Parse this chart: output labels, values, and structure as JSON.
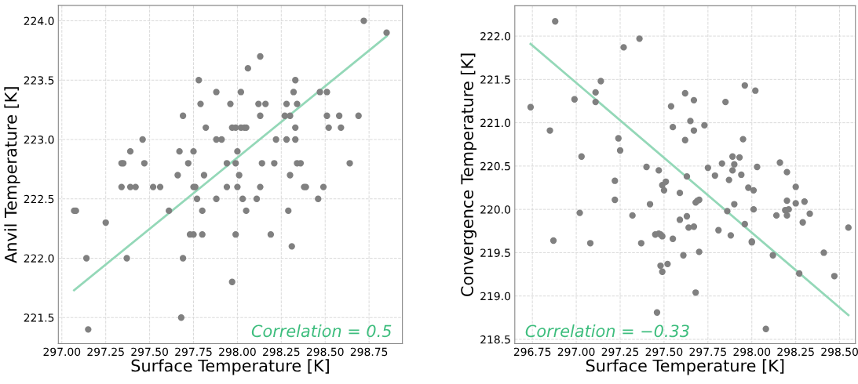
{
  "chart_data": [
    {
      "type": "scatter",
      "xlabel": "Surface Temperature [K]",
      "ylabel": "Anvil Temperature [K]",
      "xlim": [
        296.98,
        298.94
      ],
      "ylim": [
        221.28,
        224.13
      ],
      "xticks": [
        {
          "value": 297.0,
          "label": "297.00"
        },
        {
          "value": 297.25,
          "label": "297.25"
        },
        {
          "value": 297.5,
          "label": "297.50"
        },
        {
          "value": 297.75,
          "label": "297.75"
        },
        {
          "value": 298.0,
          "label": "298.00"
        },
        {
          "value": 298.25,
          "label": "298.25"
        },
        {
          "value": 298.5,
          "label": "298.50"
        },
        {
          "value": 298.75,
          "label": "298.75"
        }
      ],
      "yticks": [
        221.5,
        {
          "value": 222.0,
          "label": "222.0"
        },
        222.5,
        {
          "value": 223.0,
          "label": "223.0"
        },
        223.5,
        {
          "value": 224.0,
          "label": "224.0"
        }
      ],
      "grid": true,
      "marker": "circle",
      "annotations": [
        "Correlation = 0.5"
      ],
      "series": [
        {
          "color": "#808080",
          "x": [
            298.72,
            298.85,
            298.13,
            298.06,
            297.78,
            298.33,
            297.88,
            298.02,
            298.32,
            298.47,
            298.51,
            297.79,
            297.96,
            298.12,
            298.16,
            298.28,
            298.34,
            297.69,
            298.13,
            298.27,
            298.3,
            298.51,
            298.58,
            298.69,
            297.82,
            297.97,
            297.99,
            298.02,
            298.04,
            298.05,
            298.33,
            298.52,
            298.59,
            297.46,
            297.88,
            297.91,
            298.22,
            298.28,
            298.33,
            297.39,
            297.67,
            297.75,
            298.0,
            297.34,
            297.35,
            297.47,
            297.72,
            297.94,
            297.99,
            298.14,
            298.21,
            298.34,
            298.36,
            298.64,
            297.66,
            297.81,
            298.01,
            298.3,
            297.34,
            297.39,
            297.42,
            297.52,
            297.56,
            297.75,
            297.76,
            297.94,
            298.0,
            298.13,
            298.38,
            298.39,
            298.49,
            297.77,
            297.88,
            298.03,
            298.11,
            298.46,
            297.07,
            297.08,
            297.61,
            297.8,
            298.05,
            298.29,
            297.25,
            297.73,
            297.75,
            297.8,
            297.99,
            298.19,
            298.31,
            297.14,
            297.37,
            297.69,
            297.97,
            297.68,
            297.15
          ],
          "values": [
            224.0,
            223.9,
            223.7,
            223.6,
            223.5,
            223.5,
            223.4,
            223.4,
            223.4,
            223.4,
            223.4,
            223.3,
            223.3,
            223.3,
            223.3,
            223.3,
            223.3,
            223.2,
            223.2,
            223.2,
            223.2,
            223.2,
            223.2,
            223.2,
            223.1,
            223.1,
            223.1,
            223.1,
            223.1,
            223.1,
            223.1,
            223.1,
            223.1,
            223.0,
            223.0,
            223.0,
            223.0,
            223.0,
            223.0,
            222.9,
            222.9,
            222.9,
            222.9,
            222.8,
            222.8,
            222.8,
            222.8,
            222.8,
            222.8,
            222.8,
            222.8,
            222.8,
            222.8,
            222.8,
            222.7,
            222.7,
            222.7,
            222.7,
            222.6,
            222.6,
            222.6,
            222.6,
            222.6,
            222.6,
            222.6,
            222.6,
            222.6,
            222.6,
            222.6,
            222.6,
            222.6,
            222.5,
            222.5,
            222.5,
            222.5,
            222.5,
            222.4,
            222.4,
            222.4,
            222.4,
            222.4,
            222.4,
            222.3,
            222.2,
            222.2,
            222.2,
            222.2,
            222.2,
            222.1,
            222.0,
            222.0,
            222.0,
            221.8,
            221.5,
            221.4
          ]
        },
        {
          "type": "line",
          "color": "#94d8b8",
          "marker": "none",
          "line_style": "solid",
          "x": [
            297.07,
            298.85
          ],
          "values": [
            221.73,
            223.87
          ]
        }
      ]
    },
    {
      "type": "scatter",
      "xlabel": "Surface Temperature [K]",
      "ylabel": "Convergence Temperature [K]",
      "xlim": [
        296.65,
        298.59
      ],
      "ylim": [
        218.45,
        222.35
      ],
      "xticks": [
        {
          "value": 296.75,
          "label": "296.75"
        },
        {
          "value": 297.0,
          "label": "297.00"
        },
        {
          "value": 297.25,
          "label": "297.25"
        },
        {
          "value": 297.5,
          "label": "297.50"
        },
        {
          "value": 297.75,
          "label": "297.75"
        },
        {
          "value": 298.0,
          "label": "298.00"
        },
        {
          "value": 298.25,
          "label": "298.25"
        },
        {
          "value": 298.5,
          "label": "298.50"
        }
      ],
      "yticks": [
        218.5,
        {
          "value": 219.0,
          "label": "219.0"
        },
        219.5,
        {
          "value": 220.0,
          "label": "220.0"
        },
        220.5,
        {
          "value": 221.0,
          "label": "221.0"
        },
        221.5,
        {
          "value": 222.0,
          "label": "222.0"
        }
      ],
      "grid": true,
      "marker": "circle",
      "annotations": [
        "Correlation = −0.33"
      ],
      "series": [
        {
          "color": "#808080",
          "x": [
            296.88,
            296.74,
            296.85,
            296.99,
            297.03,
            297.11,
            297.11,
            297.14,
            297.27,
            297.36,
            297.24,
            297.25,
            297.4,
            297.47,
            297.54,
            297.55,
            297.62,
            297.67,
            297.65,
            297.62,
            297.67,
            297.73,
            297.63,
            297.75,
            297.79,
            297.83,
            297.85,
            297.87,
            297.89,
            297.93,
            297.9,
            297.89,
            297.94,
            297.95,
            297.96,
            298.02,
            298.03,
            298.16,
            298.2,
            297.22,
            297.22,
            297.49,
            297.51,
            297.5,
            297.59,
            297.68,
            297.69,
            297.7,
            297.42,
            297.02,
            297.32,
            297.63,
            297.59,
            297.64,
            297.67,
            297.81,
            297.86,
            297.9,
            297.98,
            298.01,
            298.01,
            297.96,
            297.88,
            298.0,
            298.0,
            298.12,
            298.14,
            298.19,
            298.21,
            298.2,
            298.2,
            298.25,
            298.25,
            298.3,
            298.29,
            298.33,
            298.27,
            298.41,
            298.47,
            298.55,
            296.87,
            297.08,
            297.37,
            297.45,
            297.47,
            297.48,
            297.49,
            297.55,
            297.61,
            297.7,
            297.48,
            297.52,
            297.49,
            297.68,
            297.46,
            298.08
          ],
          "values": [
            222.17,
            221.18,
            220.91,
            221.27,
            220.61,
            221.35,
            221.24,
            221.48,
            221.87,
            221.97,
            220.82,
            220.68,
            220.49,
            220.45,
            221.19,
            220.95,
            221.34,
            221.26,
            221.02,
            220.8,
            220.91,
            220.97,
            220.38,
            220.48,
            220.39,
            220.53,
            221.24,
            220.34,
            220.61,
            220.6,
            220.52,
            220.45,
            220.4,
            220.81,
            221.43,
            221.37,
            220.49,
            220.54,
            220.43,
            220.33,
            220.11,
            220.28,
            220.32,
            220.22,
            220.19,
            220.08,
            220.1,
            220.11,
            220.06,
            219.96,
            219.93,
            219.92,
            219.88,
            219.79,
            219.8,
            219.76,
            219.98,
            220.06,
            220.25,
            220.22,
            220.0,
            219.83,
            219.7,
            219.63,
            219.62,
            219.47,
            219.93,
            219.99,
            220.0,
            219.93,
            220.1,
            220.26,
            220.07,
            220.09,
            219.85,
            219.95,
            219.26,
            219.5,
            219.23,
            219.79,
            219.64,
            219.61,
            219.61,
            219.71,
            219.72,
            219.71,
            219.69,
            219.66,
            219.47,
            219.51,
            219.35,
            219.37,
            219.28,
            219.04,
            218.81,
            218.62
          ]
        },
        {
          "type": "line",
          "color": "#94d8b8",
          "marker": "none",
          "line_style": "solid",
          "x": [
            296.74,
            298.55
          ],
          "values": [
            221.91,
            218.78
          ]
        }
      ]
    }
  ]
}
